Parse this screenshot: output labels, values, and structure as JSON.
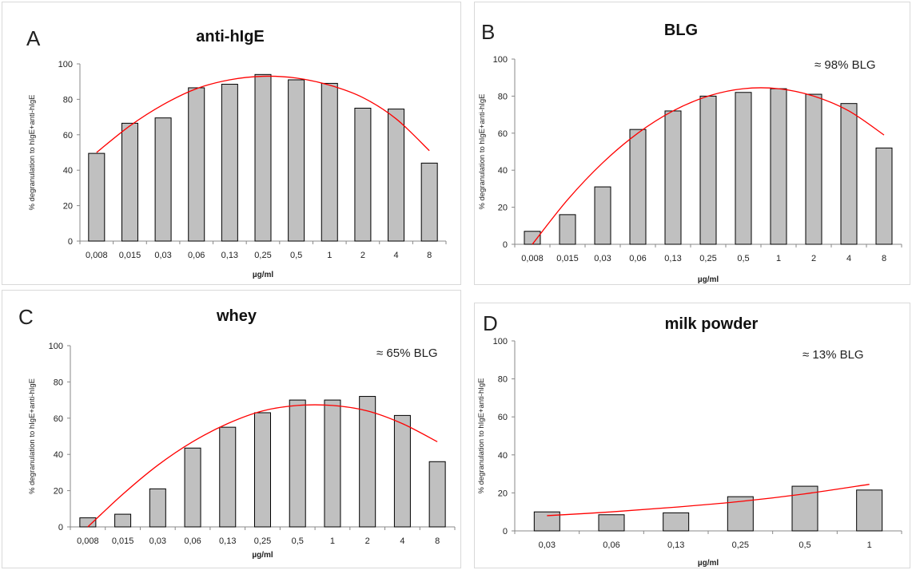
{
  "colors": {
    "bar_fill": "#c0c0c0",
    "bar_stroke": "#000000",
    "trend": "#ff0000"
  },
  "chart_data": [
    {
      "type": "bar",
      "panel_letter": "A",
      "title": "anti-hIgE",
      "annotation": "",
      "xlabel": "µg/ml",
      "ylabel": "% degranulation to hIgE+anti-hIgE",
      "categories": [
        "0,008",
        "0,015",
        "0,03",
        "0,06",
        "0,13",
        "0,25",
        "0,5",
        "1",
        "2",
        "4",
        "8"
      ],
      "values": [
        49.5,
        66.5,
        69.5,
        86.5,
        88.5,
        94,
        91,
        89,
        75,
        74.5,
        44
      ],
      "ylim": [
        0,
        100
      ],
      "yticks": [
        0,
        20,
        40,
        60,
        80,
        100
      ],
      "trendline": {
        "kind": "polynomial",
        "y_at_category": [
          50,
          65,
          77,
          86,
          91,
          93,
          92,
          88,
          81,
          69,
          51
        ]
      }
    },
    {
      "type": "bar",
      "panel_letter": "B",
      "title": "BLG",
      "annotation": "≈ 98% BLG",
      "xlabel": "µg/ml",
      "ylabel": "% degranulation to hIgE+anti-hIgE",
      "categories": [
        "0,008",
        "0,015",
        "0,03",
        "0,06",
        "0,13",
        "0,25",
        "0,5",
        "1",
        "2",
        "4",
        "8"
      ],
      "values": [
        7,
        16,
        31,
        62,
        72,
        80,
        82,
        84,
        81,
        76,
        52
      ],
      "ylim": [
        0,
        100
      ],
      "yticks": [
        0,
        20,
        40,
        60,
        80,
        100
      ],
      "trendline": {
        "kind": "polynomial",
        "y_at_category": [
          0,
          24,
          44,
          60,
          72,
          80,
          84,
          84,
          80,
          72,
          59
        ]
      }
    },
    {
      "type": "bar",
      "panel_letter": "C",
      "title": "whey",
      "annotation": "≈ 65% BLG",
      "xlabel": "µg/ml",
      "ylabel": "% degranulation to hIgE+anti-hIgE",
      "categories": [
        "0,008",
        "0,015",
        "0,03",
        "0,06",
        "0,13",
        "0,25",
        "0,5",
        "1",
        "2",
        "4",
        "8"
      ],
      "values": [
        5,
        7,
        21,
        43.5,
        55,
        63,
        70,
        70,
        72,
        61.5,
        36
      ],
      "ylim": [
        0,
        100
      ],
      "yticks": [
        0,
        20,
        40,
        60,
        80,
        100
      ],
      "trendline": {
        "kind": "polynomial",
        "y_at_category": [
          0,
          18,
          34,
          47,
          57,
          64,
          67,
          67,
          64,
          57,
          47
        ]
      }
    },
    {
      "type": "bar",
      "panel_letter": "D",
      "title": "milk powder",
      "annotation": "≈ 13% BLG",
      "xlabel": "µg/ml",
      "ylabel": "% degranulation to hIgE+anti-hIgE",
      "categories": [
        "0,03",
        "0,06",
        "0,13",
        "0,25",
        "0,5",
        "1"
      ],
      "values": [
        10,
        8.5,
        9.5,
        18,
        23.5,
        21.5
      ],
      "ylim": [
        0,
        100
      ],
      "yticks": [
        0,
        20,
        40,
        60,
        80,
        100
      ],
      "trendline": {
        "kind": "polynomial",
        "y_at_category": [
          8,
          10,
          12.5,
          15.5,
          19.5,
          24.5
        ]
      }
    }
  ]
}
